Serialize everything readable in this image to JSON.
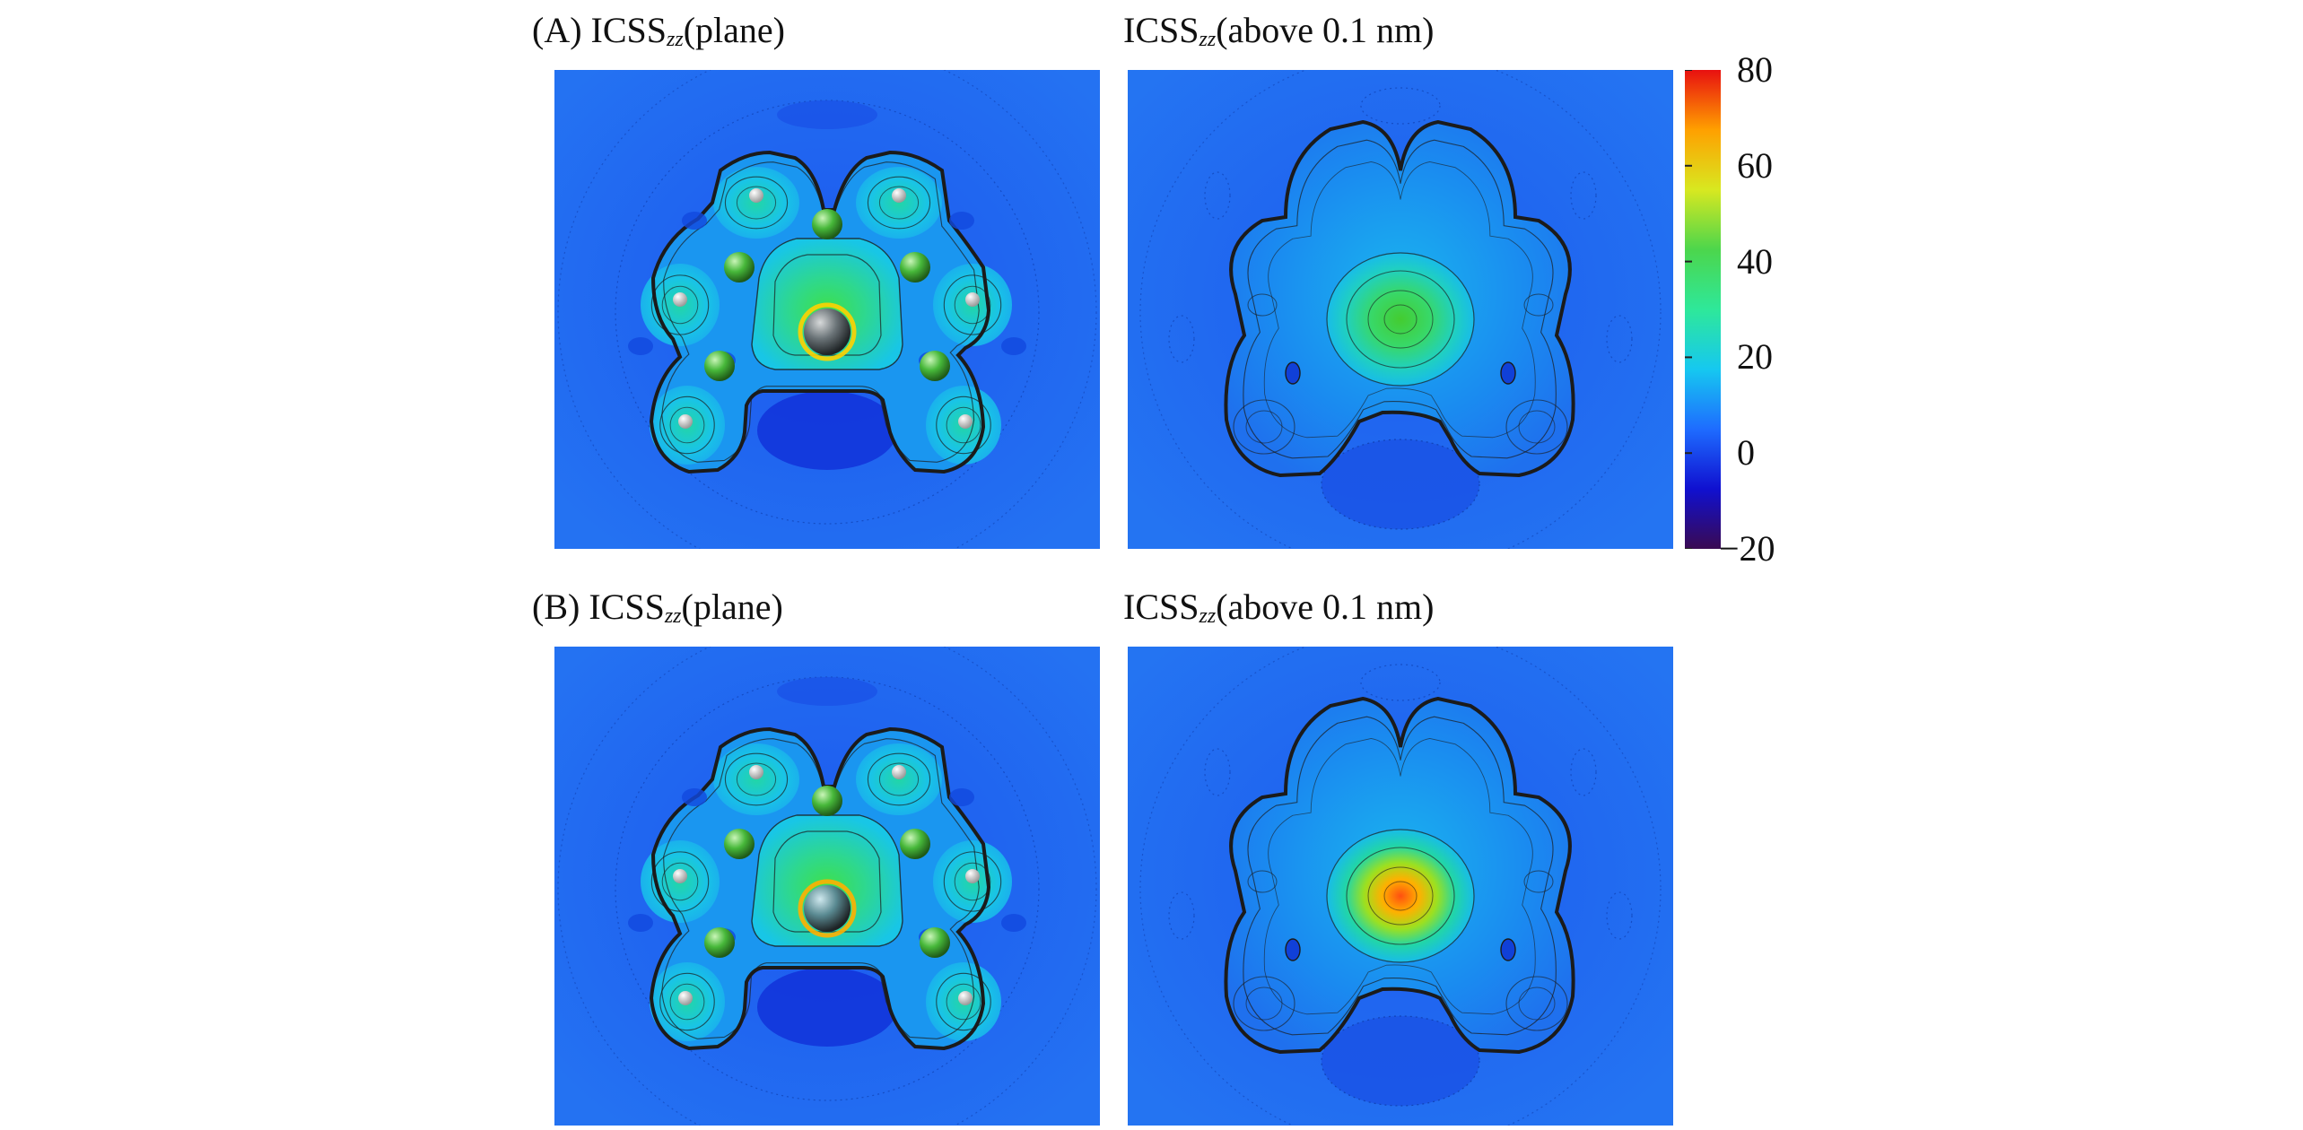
{
  "figure": {
    "panels": [
      {
        "id": "A",
        "row_label": "(A)",
        "title_main": "ICSS",
        "title_sub": "zz",
        "title_rest": "(plane)",
        "kind": "plane",
        "variant": "A"
      },
      {
        "id": "A2",
        "row_label": "",
        "title_main": "ICSS",
        "title_sub": "zz",
        "title_rest": "(above 0.1 nm)",
        "kind": "above",
        "variant": "A"
      },
      {
        "id": "B",
        "row_label": "(B)",
        "title_main": "ICSS",
        "title_sub": "zz",
        "title_rest": "(plane)",
        "kind": "plane",
        "variant": "B"
      },
      {
        "id": "B2",
        "row_label": "",
        "title_main": "ICSS",
        "title_sub": "zz",
        "title_rest": "(above 0.1 nm)",
        "kind": "above",
        "variant": "B"
      }
    ],
    "colorbar": {
      "min": -20,
      "max": 80,
      "ticks": [
        "80",
        "60",
        "40",
        "20",
        "0",
        "−20"
      ],
      "tick_values": [
        80,
        60,
        40,
        20,
        0,
        -20
      ],
      "colors": [
        "#3a0a52",
        "#1010d0",
        "#1e6cff",
        "#16c8f0",
        "#2ee89a",
        "#4cd64c",
        "#d8e820",
        "#ffa000",
        "#e81010"
      ]
    },
    "colors": {
      "background_field": "#1f66ef",
      "contour_line": "#1b1b1b",
      "cage_atom": "#47b83a",
      "hydrogen_atom": "#eeeeee",
      "central_atom": "#6b7478"
    }
  }
}
